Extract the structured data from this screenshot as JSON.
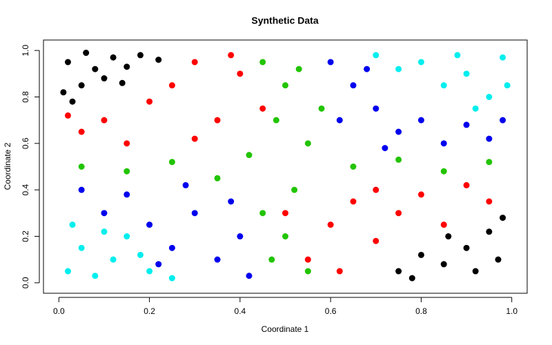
{
  "chart_data": {
    "type": "scatter",
    "title": "Synthetic Data",
    "x_label": "Coordinate 1",
    "y_label": "Coordinate 2",
    "xlim": [
      -0.034,
      1.034
    ],
    "ylim": [
      -0.045,
      1.045
    ],
    "xticks": [
      {
        "value": 0,
        "label": "0.0"
      },
      0.2,
      0.4,
      0.6,
      0.8,
      {
        "value": 1,
        "label": "1.0"
      }
    ],
    "yticks": [
      {
        "value": 0,
        "label": "0.0"
      },
      0.2,
      0.4,
      0.6,
      0.8,
      {
        "value": 1,
        "label": "1.0"
      }
    ],
    "grid": false,
    "series": [
      {
        "color": "#000000",
        "x": [
          0.02,
          0.05,
          0.08,
          0.12,
          0.03,
          0.1,
          0.15,
          0.18,
          0.06,
          0.22,
          0.14,
          0.01,
          0.75,
          0.8,
          0.85,
          0.9,
          0.95,
          0.92,
          0.98,
          0.86,
          0.78,
          0.97
        ],
        "y": [
          0.95,
          0.85,
          0.92,
          0.97,
          0.78,
          0.88,
          0.93,
          0.98,
          0.99,
          0.96,
          0.86,
          0.82,
          0.05,
          0.12,
          0.08,
          0.15,
          0.22,
          0.05,
          0.28,
          0.2,
          0.02,
          0.1
        ]
      },
      {
        "color": "#00eeee",
        "x": [
          0.02,
          0.05,
          0.08,
          0.12,
          0.15,
          0.03,
          0.2,
          0.25,
          0.18,
          0.1,
          0.7,
          0.8,
          0.9,
          0.95,
          0.85,
          0.98,
          0.75,
          0.92,
          0.88,
          0.99
        ],
        "y": [
          0.05,
          0.15,
          0.03,
          0.1,
          0.2,
          0.25,
          0.05,
          0.02,
          0.12,
          0.22,
          0.98,
          0.95,
          0.9,
          0.8,
          0.85,
          0.97,
          0.92,
          0.75,
          0.98,
          0.85
        ]
      },
      {
        "color": "#ff0000",
        "x": [
          0.05,
          0.1,
          0.15,
          0.2,
          0.25,
          0.3,
          0.35,
          0.4,
          0.45,
          0.3,
          0.02,
          0.38,
          0.55,
          0.6,
          0.65,
          0.7,
          0.75,
          0.8,
          0.85,
          0.9,
          0.95,
          0.62,
          0.7,
          0.5
        ],
        "y": [
          0.65,
          0.7,
          0.6,
          0.78,
          0.85,
          0.95,
          0.7,
          0.9,
          0.75,
          0.62,
          0.72,
          0.98,
          0.1,
          0.25,
          0.35,
          0.4,
          0.3,
          0.38,
          0.25,
          0.42,
          0.35,
          0.05,
          0.18,
          0.3
        ]
      },
      {
        "color": "#22c400",
        "x": [
          0.45,
          0.5,
          0.48,
          0.55,
          0.52,
          0.5,
          0.55,
          0.45,
          0.58,
          0.05,
          0.15,
          0.25,
          0.35,
          0.65,
          0.75,
          0.85,
          0.95,
          0.42,
          0.47,
          0.53
        ],
        "y": [
          0.95,
          0.85,
          0.7,
          0.6,
          0.4,
          0.2,
          0.05,
          0.3,
          0.75,
          0.5,
          0.48,
          0.52,
          0.45,
          0.5,
          0.53,
          0.48,
          0.52,
          0.55,
          0.1,
          0.92
        ]
      },
      {
        "color": "#0000ee",
        "x": [
          0.05,
          0.1,
          0.15,
          0.2,
          0.25,
          0.3,
          0.35,
          0.4,
          0.42,
          0.28,
          0.38,
          0.22,
          0.6,
          0.65,
          0.7,
          0.75,
          0.8,
          0.85,
          0.9,
          0.95,
          0.62,
          0.68,
          0.72,
          0.98
        ],
        "y": [
          0.4,
          0.3,
          0.38,
          0.25,
          0.15,
          0.3,
          0.1,
          0.2,
          0.03,
          0.42,
          0.35,
          0.08,
          0.95,
          0.85,
          0.75,
          0.65,
          0.7,
          0.6,
          0.68,
          0.62,
          0.7,
          0.92,
          0.58,
          0.7
        ]
      }
    ]
  }
}
